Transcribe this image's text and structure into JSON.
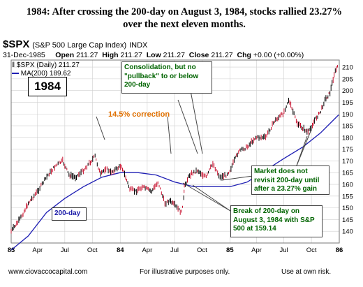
{
  "headline": {
    "line1": "1984:  After crossing the 200-day on  August 3, 1984,  stocks rallied 23.27%",
    "line2": "over the next eleven months."
  },
  "symbol_header": {
    "symbol": "$SPX",
    "description": "(S&P 500 Large Cap Index)",
    "exchange": "INDX",
    "date": "31-Dec-1985",
    "open_label": "Open",
    "open": "211.27",
    "high_label": "High",
    "high": "211.27",
    "low_label": "Low",
    "low": "211.27",
    "close_label": "Close",
    "close": "211.27",
    "chg_label": "Chg",
    "chg": "+0.00 (+0.00%)"
  },
  "legend": {
    "price_label": "$SPX (Daily) 211.27",
    "ma_label": "MA(200) 189.62"
  },
  "year_badge": "1984",
  "annotations": {
    "consolidation": "Consolidation, but no \"pullback\" to or below 200-day",
    "correction": "14.5% correction",
    "ma_label": "200-day",
    "market": "Market does not revisit 200-day until after a 23.27% gain",
    "break": "Break of 200-day on August 3, 1984 with S&P 500 at 159.14"
  },
  "footer": {
    "left": "www.ciovaccocapital.com",
    "center": "For illustrative purposes only.",
    "right": "Use at own risk."
  },
  "colors": {
    "price_up": "#000000",
    "price_down": "#c8102e",
    "ma_line": "#1f1fb4",
    "grid": "#cfcfcf",
    "annotation_green": "#006400",
    "annotation_orange": "#e07000",
    "annotation_blue": "#1a1aa8"
  },
  "chart_data": {
    "type": "line",
    "title": "$SPX (S&P 500 Large Cap Index)",
    "x_ticks": [
      "83",
      "Apr",
      "Jul",
      "Oct",
      "84",
      "Apr",
      "Jul",
      "Oct",
      "85",
      "Apr",
      "Jul",
      "Oct",
      "86"
    ],
    "y_ticks": [
      140,
      145,
      150,
      155,
      160,
      165,
      170,
      175,
      180,
      185,
      190,
      195,
      200,
      205,
      210
    ],
    "ylim": [
      135,
      213
    ],
    "y_axis_position": "right",
    "grid": true,
    "series": [
      {
        "name": "$SPX (Daily)",
        "x": [
          "1983-01-03",
          "1983-02-01",
          "1983-03-01",
          "1983-04-01",
          "1983-05-06",
          "1983-06-01",
          "1983-06-24",
          "1983-07-15",
          "1983-08-05",
          "1983-09-01",
          "1983-10-10",
          "1983-10-28",
          "1983-11-15",
          "1983-12-01",
          "1984-01-06",
          "1984-02-03",
          "1984-02-22",
          "1984-03-15",
          "1984-04-16",
          "1984-05-07",
          "1984-05-30",
          "1984-06-15",
          "1984-07-02",
          "1984-07-24",
          "1984-08-01",
          "1984-08-03",
          "1984-08-20",
          "1984-09-15",
          "1984-10-15",
          "1984-11-06",
          "1984-11-30",
          "1984-12-20",
          "1985-01-02",
          "1985-01-31",
          "1985-03-01",
          "1985-03-29",
          "1985-05-01",
          "1985-05-31",
          "1985-06-28",
          "1985-07-17",
          "1985-08-15",
          "1985-09-20",
          "1985-10-15",
          "1985-11-01",
          "1985-11-15",
          "1985-12-02",
          "1985-12-16",
          "1985-12-31"
        ],
        "values": [
          140,
          145,
          152,
          157,
          164,
          168,
          170,
          164,
          163,
          166,
          172,
          164,
          167,
          165,
          168,
          158,
          157,
          159,
          157,
          161,
          152,
          153,
          151,
          148,
          154,
          159.14,
          164,
          166,
          163,
          169,
          163,
          164,
          166,
          174,
          176,
          180,
          180,
          187,
          190,
          196,
          186,
          182,
          188,
          191,
          196,
          199,
          207,
          211.27
        ]
      },
      {
        "name": "MA(200)",
        "x": [
          "1983-01-03",
          "1983-03-01",
          "1983-05-01",
          "1983-07-01",
          "1983-09-01",
          "1983-11-01",
          "1984-01-02",
          "1984-03-01",
          "1984-05-01",
          "1984-07-02",
          "1984-09-04",
          "1984-11-01",
          "1985-01-02",
          "1985-03-01",
          "1985-05-01",
          "1985-07-01",
          "1985-09-03",
          "1985-11-01",
          "1985-12-31"
        ],
        "values": [
          132,
          138,
          148,
          154,
          159,
          163,
          165,
          165,
          164,
          161,
          159,
          159,
          159,
          161,
          166,
          171,
          176,
          182,
          189.62
        ]
      }
    ]
  }
}
